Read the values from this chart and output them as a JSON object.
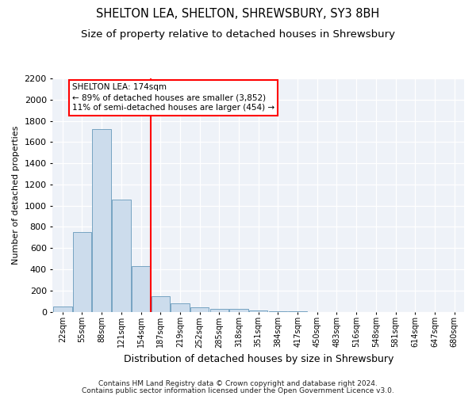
{
  "title": "SHELTON LEA, SHELTON, SHREWSBURY, SY3 8BH",
  "subtitle": "Size of property relative to detached houses in Shrewsbury",
  "xlabel": "Distribution of detached houses by size in Shrewsbury",
  "ylabel": "Number of detached properties",
  "footer_line1": "Contains HM Land Registry data © Crown copyright and database right 2024.",
  "footer_line2": "Contains public sector information licensed under the Open Government Licence v3.0.",
  "categories": [
    "22sqm",
    "55sqm",
    "88sqm",
    "121sqm",
    "154sqm",
    "187sqm",
    "219sqm",
    "252sqm",
    "285sqm",
    "318sqm",
    "351sqm",
    "384sqm",
    "417sqm",
    "450sqm",
    "483sqm",
    "516sqm",
    "548sqm",
    "581sqm",
    "614sqm",
    "647sqm",
    "680sqm"
  ],
  "bar_values": [
    50,
    750,
    1720,
    1060,
    430,
    145,
    80,
    40,
    30,
    25,
    15,
    5,
    3,
    0,
    0,
    0,
    0,
    0,
    0,
    0,
    0
  ],
  "bar_color": "#ccdcec",
  "bar_edge_color": "#6699bb",
  "red_line_index": 5,
  "annotation_line1": "SHELTON LEA: 174sqm",
  "annotation_line2": "← 89% of detached houses are smaller (3,852)",
  "annotation_line3": "11% of semi-detached houses are larger (454) →",
  "ylim": [
    0,
    2200
  ],
  "yticks": [
    0,
    200,
    400,
    600,
    800,
    1000,
    1200,
    1400,
    1600,
    1800,
    2000,
    2200
  ],
  "background_color": "#eef2f8",
  "grid_color": "#ffffff",
  "title_fontsize": 10.5,
  "subtitle_fontsize": 9.5,
  "title_fontweight": "normal"
}
